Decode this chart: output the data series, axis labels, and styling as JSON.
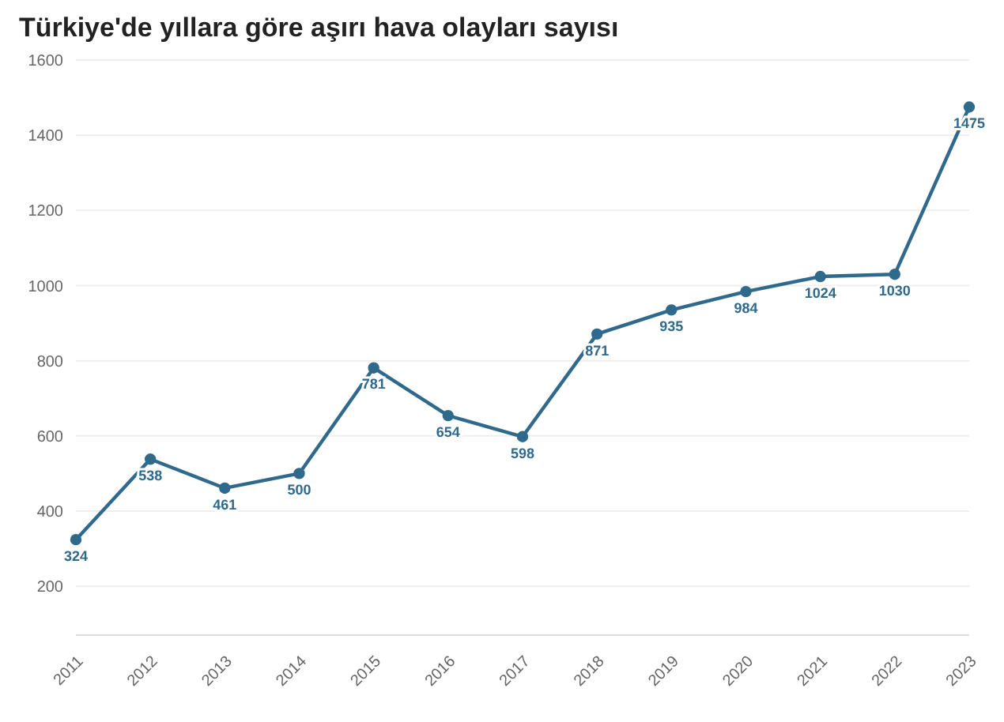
{
  "chart_data": {
    "type": "line",
    "title": "Türkiye'de yıllara göre aşırı hava olayları sayısı",
    "categories": [
      "2011",
      "2012",
      "2013",
      "2014",
      "2015",
      "2016",
      "2017",
      "2018",
      "2019",
      "2020",
      "2021",
      "2022",
      "2023"
    ],
    "series": [
      {
        "color": "#2f6a8c",
        "values": [
          324,
          538,
          461,
          500,
          781,
          654,
          598,
          871,
          935,
          984,
          1024,
          1030,
          1475
        ]
      }
    ],
    "ylim": [
      70,
      1600
    ],
    "yticks": [
      200,
      400,
      600,
      800,
      1000,
      1200,
      1400,
      1600
    ],
    "grid": "y",
    "marker": "circle",
    "line_style": "solid",
    "data_labels": true,
    "legend": false
  }
}
